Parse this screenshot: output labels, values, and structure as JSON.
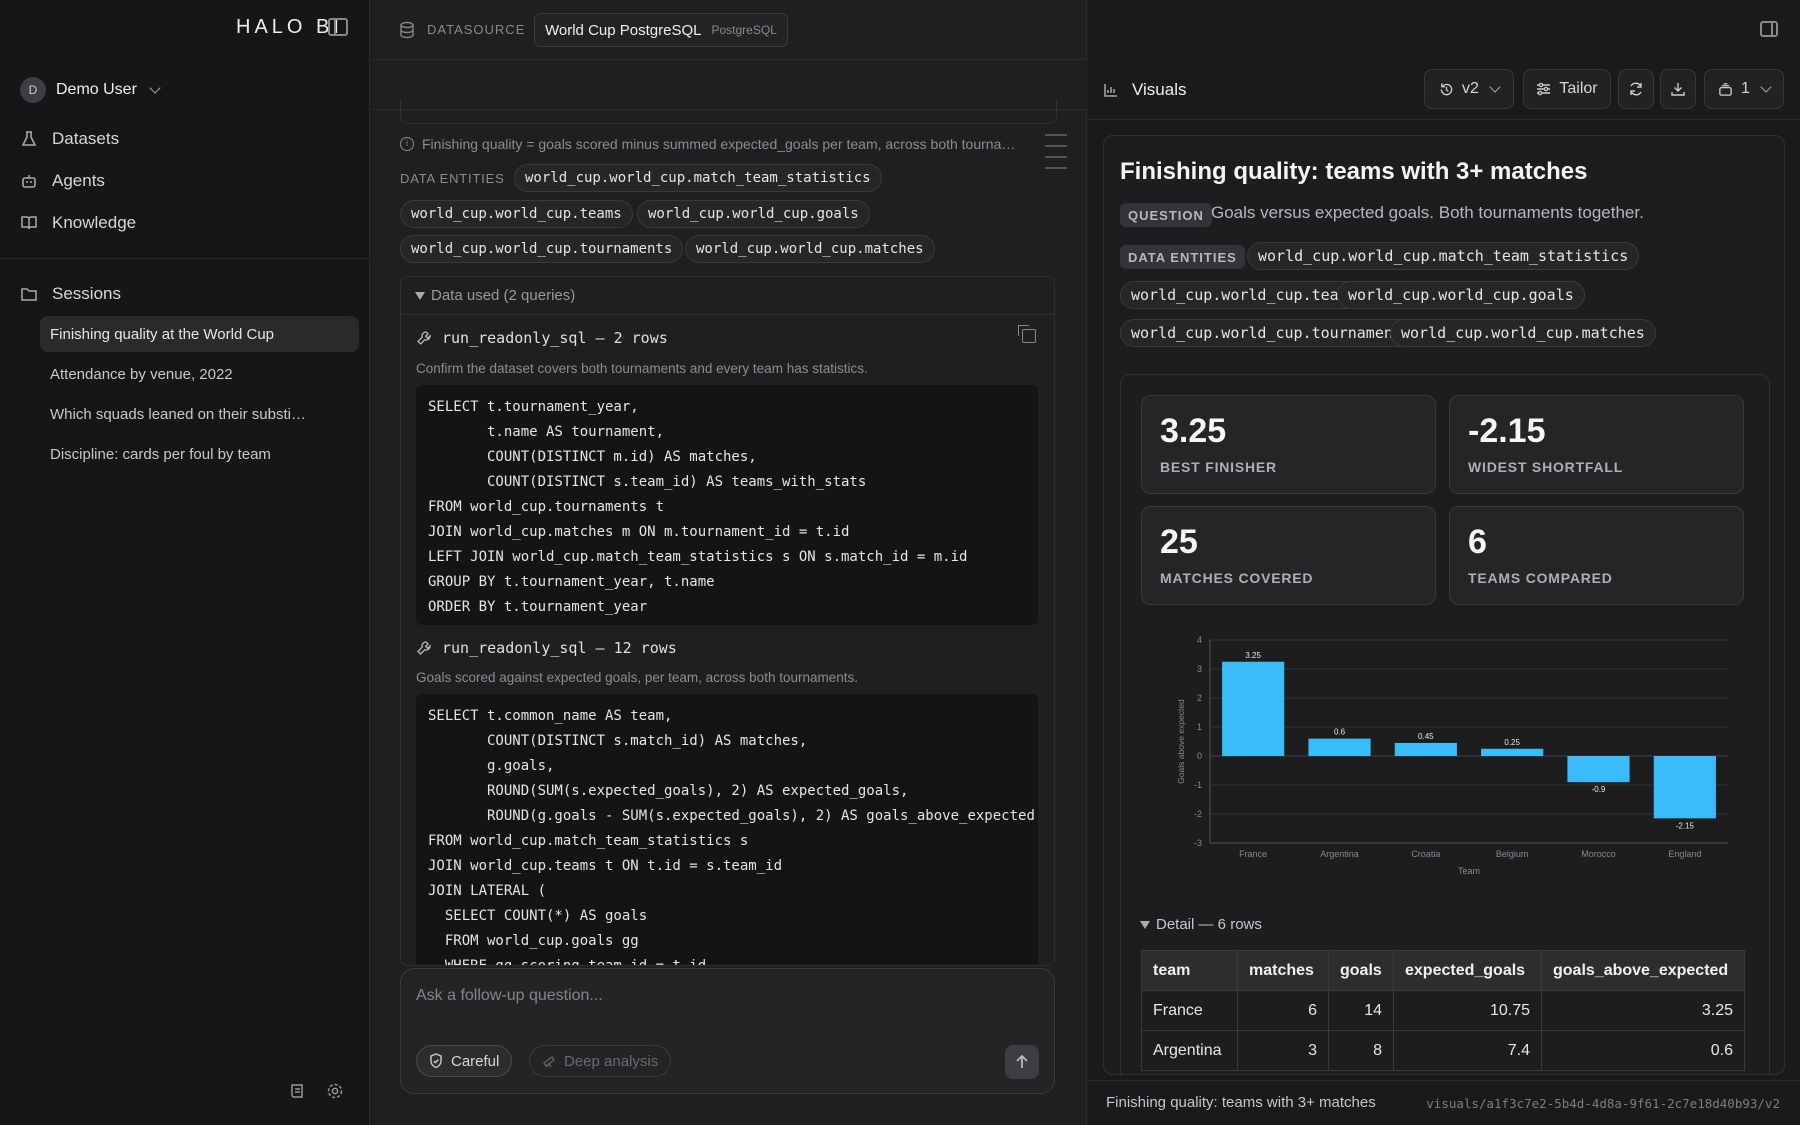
{
  "app": {
    "logo": "HALO BI",
    "user_initial": "D",
    "user_name": "Demo User"
  },
  "nav": [
    {
      "label": "Datasets",
      "icon": "flask-icon"
    },
    {
      "label": "Agents",
      "icon": "robot-icon"
    },
    {
      "label": "Knowledge",
      "icon": "book-icon"
    }
  ],
  "sessions": {
    "label": "Sessions",
    "items": [
      {
        "label": "Finishing quality at the World Cup",
        "active": true
      },
      {
        "label": "Attendance by venue, 2022",
        "active": false
      },
      {
        "label": "Which squads leaned on their substi…",
        "active": false
      },
      {
        "label": "Discipline: cards per foul by team",
        "active": false
      }
    ]
  },
  "datasource": {
    "label": "DATASOURCE",
    "name": "World Cup PostgreSQL",
    "type": "PostgreSQL"
  },
  "chat": {
    "info_text": "Finishing quality = goals scored minus summed expected_goals per team, across both tourna…",
    "data_entities_label": "DATA ENTITIES",
    "entities": [
      "world_cup.world_cup.match_team_statistics",
      "world_cup.world_cup.teams",
      "world_cup.world_cup.goals",
      "world_cup.world_cup.tournaments",
      "world_cup.world_cup.matches"
    ],
    "data_used_label": "Data used (2 queries)",
    "queries": [
      {
        "tool": "run_readonly_sql — 2 rows",
        "description": "Confirm the dataset covers both tournaments and every team has statistics.",
        "sql": "SELECT t.tournament_year,\n       t.name AS tournament,\n       COUNT(DISTINCT m.id) AS matches,\n       COUNT(DISTINCT s.team_id) AS teams_with_stats\nFROM world_cup.tournaments t\nJOIN world_cup.matches m ON m.tournament_id = t.id\nLEFT JOIN world_cup.match_team_statistics s ON s.match_id = m.id\nGROUP BY t.tournament_year, t.name\nORDER BY t.tournament_year"
      },
      {
        "tool": "run_readonly_sql — 12 rows",
        "description": "Goals scored against expected goals, per team, across both tournaments.",
        "sql": "SELECT t.common_name AS team,\n       COUNT(DISTINCT s.match_id) AS matches,\n       g.goals,\n       ROUND(SUM(s.expected_goals), 2) AS expected_goals,\n       ROUND(g.goals - SUM(s.expected_goals), 2) AS goals_above_expected\nFROM world_cup.match_team_statistics s\nJOIN world_cup.teams t ON t.id = s.team_id\nJOIN LATERAL (\n  SELECT COUNT(*) AS goals\n  FROM world_cup.goals gg\n  WHERE gg.scoring_team_id = t.id"
      }
    ],
    "composer_placeholder": "Ask a follow-up question...",
    "careful_label": "Careful",
    "deep_label": "Deep analysis"
  },
  "visuals": {
    "header_title": "Visuals",
    "version": "v2",
    "tailor_label": "Tailor",
    "layers_count": "1",
    "card_title": "Finishing quality: teams with 3+ matches",
    "question_tag": "QUESTION",
    "question_text": "Goals versus expected goals. Both tournaments together.",
    "data_entities_tag": "DATA ENTITIES",
    "entities": [
      "world_cup.world_cup.match_team_statistics",
      "world_cup.world_cup.teams",
      "world_cup.world_cup.goals",
      "world_cup.world_cup.tournaments",
      "world_cup.world_cup.matches"
    ],
    "kpis": [
      {
        "value": "3.25",
        "label": "BEST FINISHER"
      },
      {
        "value": "-2.15",
        "label": "WIDEST SHORTFALL"
      },
      {
        "value": "25",
        "label": "MATCHES COVERED"
      },
      {
        "value": "6",
        "label": "TEAMS COMPARED"
      }
    ],
    "detail_label": "Detail — 6 rows",
    "table": {
      "columns": [
        "team",
        "matches",
        "goals",
        "expected_goals",
        "goals_above_expected"
      ],
      "rows": [
        [
          "France",
          "6",
          "14",
          "10.75",
          "3.25"
        ],
        [
          "Argentina",
          "3",
          "8",
          "7.4",
          "0.6"
        ]
      ]
    },
    "footer_title": "Finishing quality: teams with 3+ matches",
    "footer_path": "visuals/a1f3c7e2-5b4d-4d8a-9f61-2c7e18d40b93/v2"
  },
  "colors": {
    "bar": "#38bdf8",
    "accent": "#38bdf8"
  },
  "chart_data": {
    "type": "bar",
    "title": "",
    "xlabel": "Team",
    "ylabel": "Goals above expected",
    "categories": [
      "France",
      "Argentina",
      "Croatia",
      "Belgium",
      "Morocco",
      "England"
    ],
    "values": [
      3.25,
      0.6,
      0.45,
      0.25,
      -0.9,
      -2.15
    ],
    "ylim": [
      -3,
      4
    ],
    "yticks": [
      4,
      3,
      2,
      1,
      0,
      -1,
      -2,
      -3
    ],
    "grid": true,
    "data_labels": true
  }
}
